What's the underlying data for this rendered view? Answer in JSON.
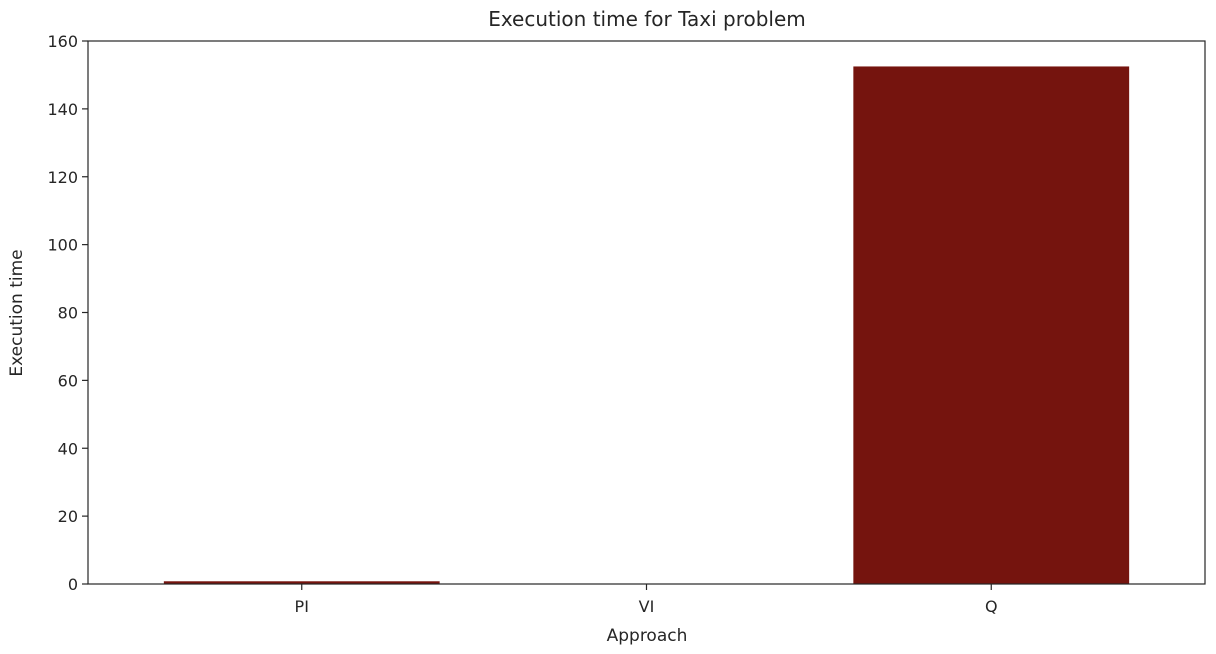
{
  "chart_data": {
    "type": "bar",
    "title": "Execution time for Taxi problem",
    "xlabel": "Approach",
    "ylabel": "Execution time",
    "categories": [
      "PI",
      "VI",
      "Q"
    ],
    "values": [
      0.8,
      0.1,
      152.5
    ],
    "ylim": [
      0,
      160
    ],
    "yticks": [
      0,
      20,
      40,
      60,
      80,
      100,
      120,
      140,
      160
    ],
    "bar_color": "#75140e",
    "grid": false,
    "legend": "none"
  }
}
